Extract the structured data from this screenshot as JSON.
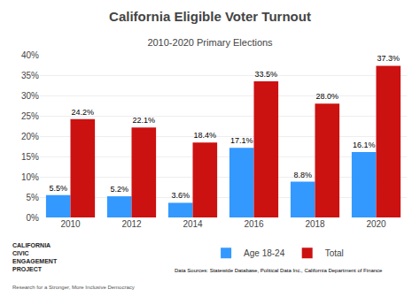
{
  "chart_data": {
    "type": "bar",
    "title": "California Eligible Voter Turnout",
    "subtitle": "2010-2020 Primary Elections",
    "categories": [
      "2010",
      "2012",
      "2014",
      "2016",
      "2018",
      "2020"
    ],
    "series": [
      {
        "name": "Age 18-24",
        "color": "#3399FF",
        "values": [
          5.5,
          5.2,
          3.6,
          17.1,
          8.8,
          16.1
        ],
        "value_labels": [
          "5.5%",
          "5.2%",
          "3.6%",
          "17.1%",
          "8.8%",
          "16.1%"
        ]
      },
      {
        "name": "Total",
        "color": "#CC1111",
        "values": [
          24.2,
          22.1,
          18.4,
          33.5,
          28.0,
          37.3
        ],
        "value_labels": [
          "24.2%",
          "22.1%",
          "18.4%",
          "33.5%",
          "28.0%",
          "37.3%"
        ]
      }
    ],
    "ylim": [
      0,
      40
    ],
    "yticks": [
      {
        "value": 0,
        "label": "0%"
      },
      {
        "value": 5,
        "label": "5%"
      },
      {
        "value": 10,
        "label": "10%"
      },
      {
        "value": 15,
        "label": "15%"
      },
      {
        "value": 20,
        "label": "20%"
      },
      {
        "value": 25,
        "label": "25%"
      },
      {
        "value": 30,
        "label": "30%"
      },
      {
        "value": 35,
        "label": "35%"
      },
      {
        "value": 40,
        "label": "40%"
      }
    ],
    "grid": true,
    "legend": "bottom",
    "data_labels": true,
    "annotations": [
      "CALIFORNIA\nCIVIC\nENGAGEMENT\nPROJECT",
      "Data Sources: Statewide Database, Political Data Inc., California Department of Finance",
      "Research for a Stronger, More Inclusive Democracy"
    ]
  }
}
